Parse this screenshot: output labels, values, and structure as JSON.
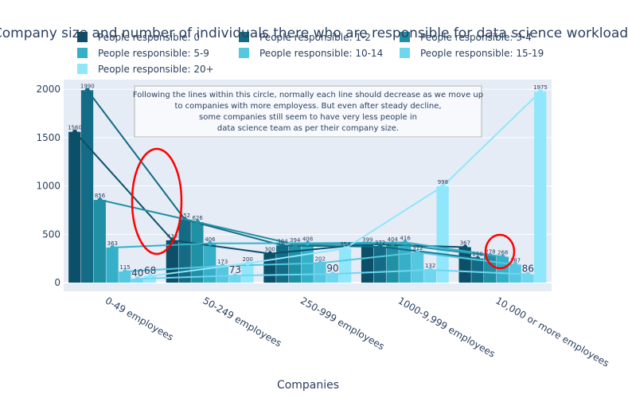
{
  "chart_data": {
    "type": "bar",
    "title": "Company size and number of individuals there who are responsible for data science workload",
    "xlabel": "Companies",
    "ylabel": "",
    "ylim": [
      -90,
      2100
    ],
    "yticks": [
      0,
      500,
      1000,
      1500,
      2000
    ],
    "grid": true,
    "legend_position": "top",
    "categories": [
      "0-49 employees",
      "50-249 employees",
      "250-999 employees",
      "1000-9,999 employees",
      "10,000 or more employees"
    ],
    "series": [
      {
        "name": "People responsible: 0",
        "color": "#0b5068",
        "values": [
          1560,
          438,
          300,
          399,
          367
        ]
      },
      {
        "name": "People responsible: 1-2",
        "color": "#136b85",
        "values": [
          1990,
          652,
          384,
          372,
          250
        ]
      },
      {
        "name": "People responsible: 3-4",
        "color": "#2090a5",
        "values": [
          856,
          626,
          394,
          404,
          278
        ]
      },
      {
        "name": "People responsible: 5-9",
        "color": "#35b0c8",
        "values": [
          363,
          406,
          408,
          416,
          268
        ]
      },
      {
        "name": "People responsible: 10-14",
        "color": "#55c7e0",
        "values": [
          115,
          173,
          202,
          312,
          187
        ]
      },
      {
        "name": "People responsible: 15-19",
        "color": "#6fd6ef",
        "values": [
          40,
          73,
          90,
          132,
          86
        ]
      },
      {
        "name": "People responsible: 20+",
        "color": "#90e6fb",
        "values": [
          68,
          200,
          354,
          998,
          1975
        ]
      }
    ],
    "annotation": "Following the lines within this circle, normally each line should decrease as we move up\nto companies with more employess. But even after steady decline,\nsome companies still seem to have very less people in\ndata science team as per their company size."
  }
}
